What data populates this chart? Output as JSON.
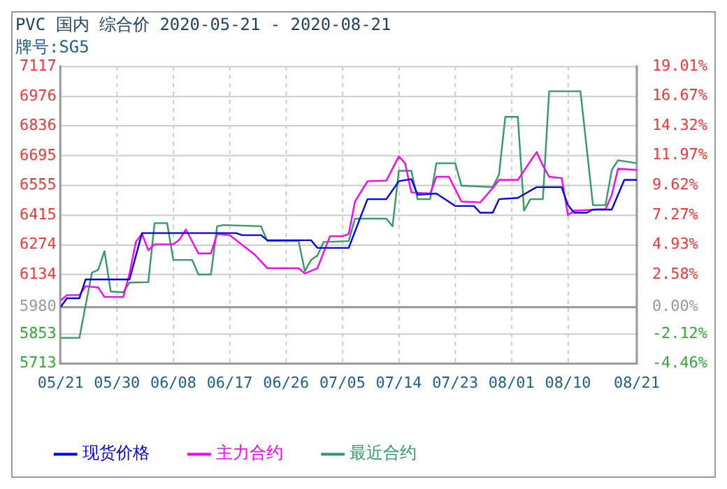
{
  "chart_data": {
    "type": "line",
    "title": "PVC 国内 综合价 2020-05-21 - 2020-08-21",
    "subtitle": "牌号:SG5",
    "xlim": [
      "2020-05-21",
      "2020-08-21"
    ],
    "xticks": [
      {
        "value": "2020-05-21",
        "label": "05/21"
      },
      {
        "value": "2020-05-30",
        "label": "05/30"
      },
      {
        "value": "2020-06-08",
        "label": "06/08"
      },
      {
        "value": "2020-06-17",
        "label": "06/17"
      },
      {
        "value": "2020-06-26",
        "label": "06/26"
      },
      {
        "value": "2020-07-05",
        "label": "07/05"
      },
      {
        "value": "2020-07-14",
        "label": "07/14"
      },
      {
        "value": "2020-07-23",
        "label": "07/23"
      },
      {
        "value": "2020-08-01",
        "label": "08/01"
      },
      {
        "value": "2020-08-10",
        "label": "08/10"
      },
      {
        "value": "2020-08-21",
        "label": "08/21"
      }
    ],
    "ylim": [
      5713,
      7117
    ],
    "yticks": [
      5713,
      5853,
      5980,
      6134,
      6274,
      6415,
      6555,
      6695,
      6836,
      6976,
      7117
    ],
    "y2lim": [
      -4.46,
      19.01
    ],
    "y2ticks": [
      {
        "value": -4.46,
        "label": "-4.46%"
      },
      {
        "value": -2.12,
        "label": "-2.12%"
      },
      {
        "value": 0,
        "label": "0.00%"
      },
      {
        "value": 2.58,
        "label": "2.58%"
      },
      {
        "value": 4.93,
        "label": "4.93%"
      },
      {
        "value": 7.27,
        "label": "7.27%"
      },
      {
        "value": 9.62,
        "label": "9.62%"
      },
      {
        "value": 11.97,
        "label": "11.97%"
      },
      {
        "value": 14.32,
        "label": "14.32%"
      },
      {
        "value": 16.67,
        "label": "16.67%"
      },
      {
        "value": 19.01,
        "label": "19.01%"
      }
    ],
    "ref_lines": [
      {
        "axis": "y",
        "value": 5980,
        "color": "#999999"
      }
    ],
    "grid": true,
    "legend": "bottom",
    "marker": "none",
    "line_style": "solid",
    "series": [
      {
        "name": "现货价格",
        "color": "#0000ff",
        "x": [
          "2020-05-21",
          "2020-05-22",
          "2020-05-24",
          "2020-05-25",
          "2020-06-01",
          "2020-06-03",
          "2020-06-18",
          "2020-06-19",
          "2020-06-22",
          "2020-06-23",
          "2020-06-30",
          "2020-07-01",
          "2020-07-06",
          "2020-07-08",
          "2020-07-09",
          "2020-07-12",
          "2020-07-14",
          "2020-07-16",
          "2020-07-17",
          "2020-07-20",
          "2020-07-23",
          "2020-07-26",
          "2020-07-27",
          "2020-07-29",
          "2020-07-30",
          "2020-08-02",
          "2020-08-05",
          "2020-08-09",
          "2020-08-10",
          "2020-08-11",
          "2020-08-13",
          "2020-08-14",
          "2020-08-17",
          "2020-08-19",
          "2020-08-21"
        ],
        "values": [
          5980,
          6022,
          6022,
          6111,
          6111,
          6330,
          6330,
          6320,
          6320,
          6296,
          6296,
          6260,
          6260,
          6415,
          6490,
          6490,
          6575,
          6585,
          6511,
          6517,
          6458,
          6458,
          6426,
          6426,
          6490,
          6496,
          6547,
          6547,
          6462,
          6426,
          6426,
          6441,
          6441,
          6581,
          6581
        ]
      },
      {
        "name": "主力合约",
        "color": "#ff00ff",
        "x": [
          "2020-05-21",
          "2020-05-22",
          "2020-05-24",
          "2020-05-25",
          "2020-05-27",
          "2020-05-28",
          "2020-05-31",
          "2020-06-01",
          "2020-06-02",
          "2020-06-03",
          "2020-06-04",
          "2020-06-05",
          "2020-06-08",
          "2020-06-09",
          "2020-06-10",
          "2020-06-12",
          "2020-06-14",
          "2020-06-15",
          "2020-06-17",
          "2020-06-21",
          "2020-06-23",
          "2020-06-28",
          "2020-06-29",
          "2020-07-01",
          "2020-07-03",
          "2020-07-05",
          "2020-07-06",
          "2020-07-07",
          "2020-07-09",
          "2020-07-12",
          "2020-07-14",
          "2020-07-15",
          "2020-07-16",
          "2020-07-19",
          "2020-07-20",
          "2020-07-22",
          "2020-07-24",
          "2020-07-27",
          "2020-07-29",
          "2020-07-30",
          "2020-08-02",
          "2020-08-05",
          "2020-08-06",
          "2020-08-07",
          "2020-08-09",
          "2020-08-10",
          "2020-08-11",
          "2020-08-16",
          "2020-08-17",
          "2020-08-18",
          "2020-08-21"
        ],
        "values": [
          6011,
          6037,
          6037,
          6079,
          6073,
          6028,
          6028,
          6139,
          6288,
          6326,
          6249,
          6277,
          6277,
          6300,
          6347,
          6234,
          6234,
          6326,
          6320,
          6228,
          6164,
          6164,
          6139,
          6164,
          6315,
          6315,
          6326,
          6479,
          6575,
          6578,
          6692,
          6660,
          6522,
          6517,
          6596,
          6596,
          6479,
          6475,
          6543,
          6581,
          6581,
          6713,
          6649,
          6596,
          6590,
          6415,
          6436,
          6443,
          6511,
          6634,
          6628
        ]
      },
      {
        "name": "最近合约",
        "color": "#339966",
        "x": [
          "2020-05-21",
          "2020-05-24",
          "2020-05-25",
          "2020-05-26",
          "2020-05-27",
          "2020-05-28",
          "2020-05-29",
          "2020-05-31",
          "2020-06-01",
          "2020-06-04",
          "2020-06-05",
          "2020-06-07",
          "2020-06-08",
          "2020-06-11",
          "2020-06-12",
          "2020-06-14",
          "2020-06-15",
          "2020-06-16",
          "2020-06-22",
          "2020-06-23",
          "2020-06-28",
          "2020-06-29",
          "2020-06-30",
          "2020-07-01",
          "2020-07-02",
          "2020-07-06",
          "2020-07-07",
          "2020-07-12",
          "2020-07-13",
          "2020-07-14",
          "2020-07-16",
          "2020-07-17",
          "2020-07-19",
          "2020-07-20",
          "2020-07-23",
          "2020-07-24",
          "2020-07-29",
          "2020-07-30",
          "2020-07-31",
          "2020-08-02",
          "2020-08-03",
          "2020-08-04",
          "2020-08-06",
          "2020-08-07",
          "2020-08-12",
          "2020-08-14",
          "2020-08-16",
          "2020-08-17",
          "2020-08-18",
          "2020-08-21"
        ],
        "values": [
          5835,
          5835,
          5990,
          6143,
          6156,
          6245,
          6054,
          6050,
          6096,
          6098,
          6377,
          6377,
          6203,
          6203,
          6134,
          6134,
          6362,
          6368,
          6362,
          6292,
          6292,
          6150,
          6203,
          6224,
          6288,
          6292,
          6398,
          6398,
          6362,
          6624,
          6624,
          6490,
          6490,
          6660,
          6660,
          6554,
          6547,
          6607,
          6879,
          6879,
          6436,
          6490,
          6490,
          7000,
          7000,
          6462,
          6462,
          6628,
          6674,
          6660
        ]
      }
    ]
  }
}
